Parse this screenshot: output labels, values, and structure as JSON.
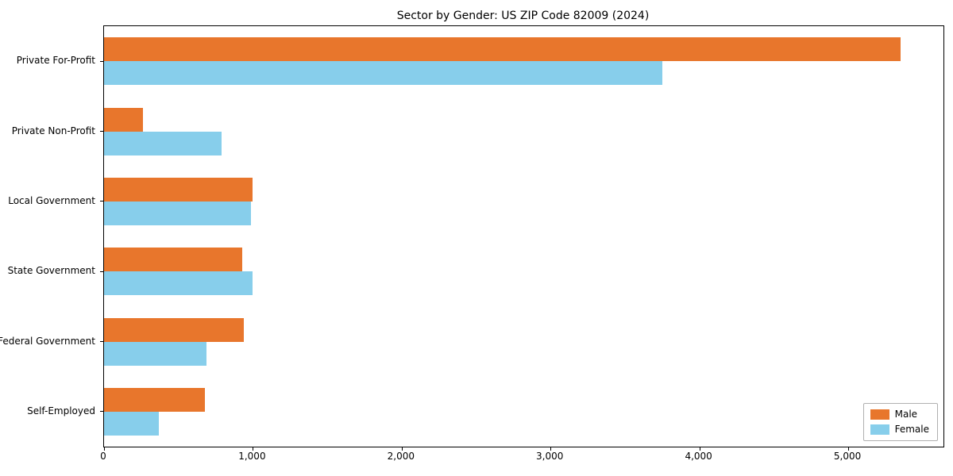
{
  "title": "Sector by Gender: US ZIP Code 82009 (2024)",
  "chart_data": {
    "type": "bar",
    "orientation": "horizontal",
    "title": "Sector by Gender: US ZIP Code 82009 (2024)",
    "categories": [
      "Private For-Profit",
      "Private Non-Profit",
      "Local Government",
      "State Government",
      "Federal Government",
      "Self-Employed"
    ],
    "series": [
      {
        "name": "Male",
        "color": "#e8762c",
        "values": [
          5350,
          260,
          1000,
          930,
          940,
          680
        ]
      },
      {
        "name": "Female",
        "color": "#87ceeb",
        "values": [
          3750,
          790,
          985,
          1000,
          690,
          370
        ]
      }
    ],
    "xlim": [
      0,
      5640
    ],
    "xticks": [
      0,
      1000,
      2000,
      3000,
      4000,
      5000
    ],
    "xtick_labels": [
      "0",
      "1,000",
      "2,000",
      "3,000",
      "4,000",
      "5,000"
    ],
    "grid": false,
    "legend_position": "lower right",
    "xlabel": "",
    "ylabel": ""
  }
}
